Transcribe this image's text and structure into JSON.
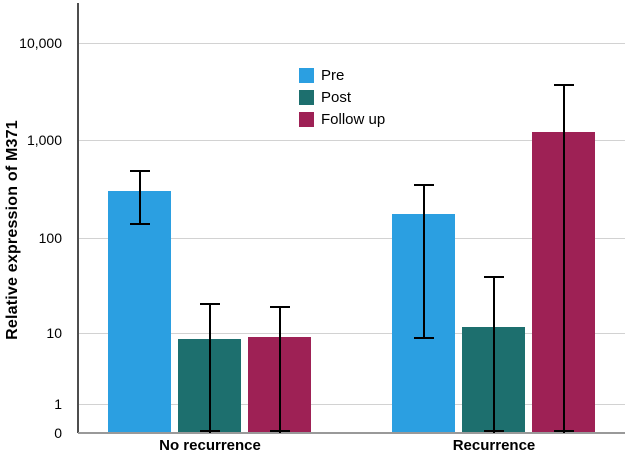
{
  "chart_data": {
    "type": "bar",
    "title": "",
    "xlabel": "",
    "ylabel": "Relative expression of M371",
    "categories": [
      "No recurrence",
      "Recurrence"
    ],
    "series": [
      {
        "name": "Pre",
        "color": "#2B9FE1",
        "values": [
          300,
          175
        ],
        "error_low": [
          140,
          8.5
        ],
        "error_high": [
          480,
          350
        ]
      },
      {
        "name": "Post",
        "color": "#1D6F6E",
        "values": [
          8.2,
          11.5
        ],
        "error_low": [
          0,
          0
        ],
        "error_high": [
          20,
          39
        ]
      },
      {
        "name": "Follow up",
        "color": "#9E2155",
        "values": [
          8.7,
          1200
        ],
        "error_low": [
          0,
          0
        ],
        "error_high": [
          19,
          3700
        ]
      }
    ],
    "y_axis": {
      "scale": "log",
      "ticks": [
        {
          "value": 0,
          "label": "0"
        },
        {
          "value": 1,
          "label": "1"
        },
        {
          "value": 10,
          "label": "10"
        },
        {
          "value": 100,
          "label": "100"
        },
        {
          "value": 1000,
          "label": "1,000"
        },
        {
          "value": 10000,
          "label": "10,000"
        }
      ]
    },
    "grid": true,
    "legend_position": "upper-center",
    "error_bar_color": "#000000"
  },
  "colors": {
    "background": "#ffffff",
    "y_axis_line": "#4d4d4d",
    "x_axis_line": "#999999",
    "gridline": "#d2d2d2",
    "text": "#000000"
  }
}
